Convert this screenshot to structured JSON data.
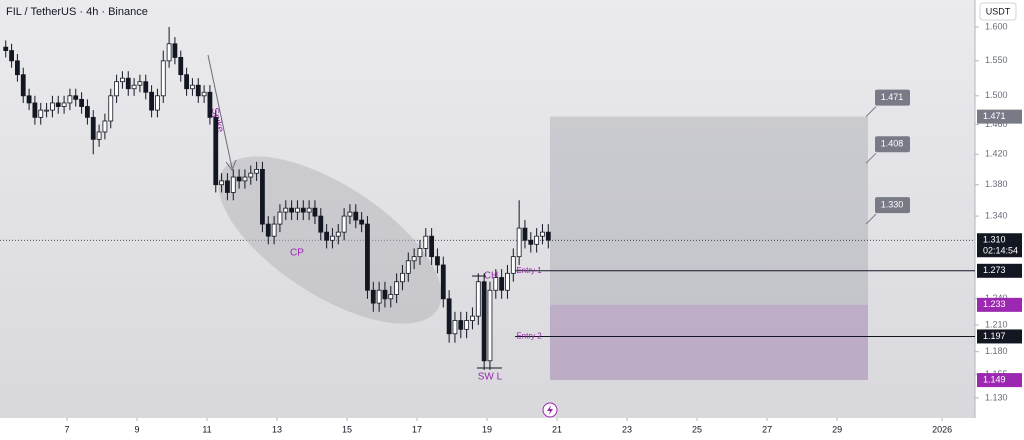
{
  "chart_data": {
    "type": "candlestick",
    "title": "FIL / TetherUS · 4h · Binance",
    "currency": "USDT",
    "x": [
      5.25,
      5.417,
      5.583,
      5.75,
      5.917,
      6.083,
      6.25,
      6.417,
      6.583,
      6.75,
      6.917,
      7.083,
      7.25,
      7.417,
      7.583,
      7.75,
      7.917,
      8.083,
      8.25,
      8.417,
      8.583,
      8.75,
      8.917,
      9.083,
      9.25,
      9.417,
      9.583,
      9.75,
      9.917,
      10.083,
      10.25,
      10.417,
      10.583,
      10.75,
      10.917,
      11.083,
      11.25,
      11.417,
      11.583,
      11.75,
      11.917,
      12.083,
      12.25,
      12.417,
      12.583,
      12.75,
      12.917,
      13.083,
      13.25,
      13.417,
      13.583,
      13.75,
      13.917,
      14.083,
      14.25,
      14.417,
      14.583,
      14.75,
      14.917,
      15.083,
      15.25,
      15.417,
      15.583,
      15.75,
      15.917,
      16.083,
      16.25,
      16.417,
      16.583,
      16.75,
      16.917,
      17.083,
      17.25,
      17.417,
      17.583,
      17.75,
      17.917,
      18.083,
      18.25,
      18.417,
      18.583,
      18.75,
      18.917,
      19.083,
      19.25,
      19.417,
      19.583,
      19.75,
      19.917,
      20.083,
      20.25,
      20.417,
      20.583,
      20.75
    ],
    "open": [
      1.57,
      1.565,
      1.55,
      1.53,
      1.5,
      1.49,
      1.47,
      1.48,
      1.48,
      1.49,
      1.485,
      1.49,
      1.5,
      1.495,
      1.485,
      1.47,
      1.44,
      1.45,
      1.465,
      1.5,
      1.52,
      1.525,
      1.51,
      1.515,
      1.52,
      1.505,
      1.48,
      1.5,
      1.55,
      1.575,
      1.555,
      1.53,
      1.51,
      1.515,
      1.5,
      1.505,
      1.47,
      1.38,
      1.385,
      1.37,
      1.39,
      1.385,
      1.39,
      1.395,
      1.4,
      1.33,
      1.315,
      1.33,
      1.345,
      1.35,
      1.345,
      1.35,
      1.345,
      1.35,
      1.34,
      1.32,
      1.31,
      1.315,
      1.32,
      1.34,
      1.345,
      1.335,
      1.33,
      1.25,
      1.235,
      1.25,
      1.24,
      1.245,
      1.26,
      1.27,
      1.285,
      1.29,
      1.3,
      1.315,
      1.29,
      1.28,
      1.24,
      1.2,
      1.215,
      1.205,
      1.215,
      1.22,
      1.26,
      1.17,
      1.25,
      1.265,
      1.25,
      1.27,
      1.29,
      1.325,
      1.31,
      1.305,
      1.315,
      1.32
    ],
    "high": [
      1.58,
      1.575,
      1.56,
      1.54,
      1.51,
      1.5,
      1.49,
      1.49,
      1.5,
      1.5,
      1.5,
      1.51,
      1.51,
      1.505,
      1.495,
      1.48,
      1.46,
      1.475,
      1.51,
      1.53,
      1.535,
      1.535,
      1.525,
      1.53,
      1.53,
      1.515,
      1.51,
      1.565,
      1.6,
      1.585,
      1.565,
      1.54,
      1.525,
      1.525,
      1.515,
      1.515,
      1.48,
      1.395,
      1.395,
      1.4,
      1.4,
      1.4,
      1.405,
      1.41,
      1.41,
      1.34,
      1.34,
      1.355,
      1.36,
      1.36,
      1.36,
      1.36,
      1.36,
      1.36,
      1.35,
      1.33,
      1.325,
      1.33,
      1.35,
      1.355,
      1.355,
      1.345,
      1.34,
      1.26,
      1.26,
      1.26,
      1.255,
      1.27,
      1.28,
      1.295,
      1.3,
      1.31,
      1.325,
      1.325,
      1.3,
      1.29,
      1.25,
      1.225,
      1.225,
      1.225,
      1.23,
      1.27,
      1.27,
      1.26,
      1.275,
      1.275,
      1.28,
      1.3,
      1.36,
      1.335,
      1.32,
      1.325,
      1.33,
      1.33
    ],
    "low": [
      1.555,
      1.54,
      1.52,
      1.49,
      1.48,
      1.46,
      1.46,
      1.47,
      1.47,
      1.475,
      1.475,
      1.48,
      1.485,
      1.475,
      1.46,
      1.42,
      1.43,
      1.44,
      1.455,
      1.49,
      1.51,
      1.5,
      1.5,
      1.505,
      1.495,
      1.47,
      1.47,
      1.49,
      1.54,
      1.545,
      1.52,
      1.5,
      1.5,
      1.49,
      1.49,
      1.46,
      1.37,
      1.37,
      1.36,
      1.36,
      1.375,
      1.375,
      1.38,
      1.385,
      1.32,
      1.305,
      1.305,
      1.32,
      1.335,
      1.335,
      1.335,
      1.335,
      1.335,
      1.33,
      1.31,
      1.3,
      1.3,
      1.305,
      1.31,
      1.33,
      1.325,
      1.32,
      1.24,
      1.225,
      1.225,
      1.23,
      1.23,
      1.235,
      1.25,
      1.26,
      1.275,
      1.28,
      1.29,
      1.28,
      1.27,
      1.23,
      1.19,
      1.19,
      1.195,
      1.195,
      1.205,
      1.21,
      1.16,
      1.16,
      1.24,
      1.24,
      1.24,
      1.26,
      1.28,
      1.3,
      1.295,
      1.295,
      1.305,
      1.3
    ],
    "close": [
      1.565,
      1.55,
      1.53,
      1.5,
      1.49,
      1.47,
      1.48,
      1.48,
      1.49,
      1.485,
      1.49,
      1.5,
      1.495,
      1.485,
      1.47,
      1.44,
      1.45,
      1.465,
      1.5,
      1.52,
      1.525,
      1.51,
      1.515,
      1.52,
      1.505,
      1.48,
      1.5,
      1.55,
      1.575,
      1.555,
      1.53,
      1.51,
      1.515,
      1.5,
      1.505,
      1.47,
      1.38,
      1.385,
      1.37,
      1.39,
      1.385,
      1.39,
      1.395,
      1.4,
      1.33,
      1.315,
      1.33,
      1.345,
      1.35,
      1.345,
      1.35,
      1.345,
      1.35,
      1.34,
      1.32,
      1.31,
      1.315,
      1.32,
      1.34,
      1.345,
      1.335,
      1.33,
      1.25,
      1.235,
      1.25,
      1.24,
      1.245,
      1.26,
      1.27,
      1.285,
      1.29,
      1.3,
      1.315,
      1.29,
      1.28,
      1.24,
      1.2,
      1.215,
      1.205,
      1.215,
      1.22,
      1.26,
      1.17,
      1.25,
      1.265,
      1.25,
      1.27,
      1.29,
      1.325,
      1.31,
      1.305,
      1.315,
      1.32,
      1.31
    ],
    "up_color": "#ffffff",
    "down_color": "#131722",
    "log_scale": true,
    "ylim": [
      1.112,
      1.641
    ],
    "yticks": [
      {
        "value": 1.6,
        "label": "1.600"
      },
      {
        "value": 1.55,
        "label": "1.550"
      },
      {
        "value": 1.5,
        "label": "1.500"
      },
      {
        "value": 1.46,
        "label": "1.460"
      },
      {
        "value": 1.42,
        "label": "1.420"
      },
      {
        "value": 1.38,
        "label": "1.380"
      },
      {
        "value": 1.34,
        "label": "1.340"
      },
      {
        "value": 1.24,
        "label": "1.240"
      },
      {
        "value": 1.21,
        "label": "1.210"
      },
      {
        "value": 1.18,
        "label": "1.180"
      },
      {
        "value": 1.155,
        "label": "1.155"
      },
      {
        "value": 1.13,
        "label": "1.130"
      }
    ],
    "xlim": [
      5.086,
      32.94
    ],
    "xticks": [
      7,
      9,
      11,
      13,
      15,
      17,
      19,
      21,
      23,
      25,
      27,
      29,
      {
        "value": 32,
        "label": "2026"
      }
    ],
    "last_price": {
      "value": 1.31,
      "label": "1.310",
      "countdown": "02:14:54"
    },
    "targets": [
      {
        "value": 1.471,
        "label": "1.471"
      },
      {
        "value": 1.408,
        "label": "1.408"
      },
      {
        "value": 1.33,
        "label": "1.330"
      }
    ],
    "levels": [
      {
        "value": 1.273,
        "label": "1.273",
        "text": "Entry 1"
      },
      {
        "value": 1.197,
        "label": "1.197",
        "text": "Entry 2"
      }
    ],
    "entry_zone": {
      "top": {
        "value": 1.233,
        "label": "1.233"
      },
      "bottom": {
        "value": 1.149,
        "label": "1.149"
      },
      "color": "#9c27b0"
    },
    "annotations": [
      "Spike",
      "CP",
      "CH",
      "SW L"
    ]
  }
}
